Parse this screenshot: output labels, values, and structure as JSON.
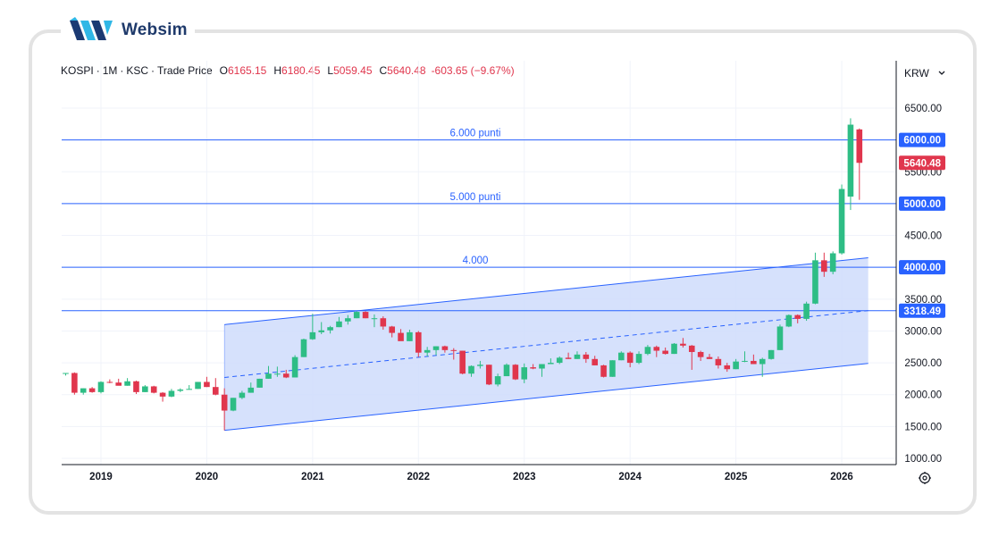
{
  "brand": {
    "name": "Websim"
  },
  "legend": {
    "symbol": "KOSPI",
    "interval": "1M",
    "exchange": "KSC",
    "price_type": "Trade Price",
    "open_key": "O",
    "open": "6165.15",
    "high_key": "H",
    "high": "6180.45",
    "low_key": "L",
    "low": "5059.45",
    "close_key": "C",
    "close": "5640.48",
    "change": "-603.65 (−9.67%)"
  },
  "currency": {
    "label": "KRW"
  },
  "colors": {
    "up": "#26a69a",
    "up_fill": "#2ebd85",
    "down": "#e0364d",
    "line": "#2962ff",
    "channel_fill": "#cfdcfb"
  },
  "chart_data": {
    "type": "candlestick",
    "title": "KOSPI · 1M · KSC · Trade Price",
    "y_ticks": [
      "6500.00",
      "6000.00",
      "5500.00",
      "5000.00",
      "4500.00",
      "4000.00",
      "3500.00",
      "3000.00",
      "2500.00",
      "2000.00",
      "1500.00",
      "1000.00"
    ],
    "ylim": [
      1000,
      6600
    ],
    "x_ticks": [
      "2019",
      "2020",
      "2021",
      "2022",
      "2023",
      "2024",
      "2025",
      "2026"
    ],
    "horizontal_levels": [
      {
        "label": "6.000 punti",
        "value": 6000,
        "badge": "6000.00"
      },
      {
        "label": "5.000 punti",
        "value": 5000,
        "badge": "5000.00"
      },
      {
        "label": "4.000",
        "value": 4000,
        "badge": "4000.00"
      },
      {
        "label": "",
        "value": 3318.49,
        "badge": "3318.49"
      }
    ],
    "last_price_badge": "5640.48",
    "channel": {
      "start": "2020-03",
      "end": "2026-04",
      "upper": [
        3100,
        4150
      ],
      "mid": [
        2270,
        3320
      ],
      "lower": [
        1440,
        2490
      ]
    },
    "candles": [
      [
        "2018-09",
        2330,
        2340,
        2300,
        2340
      ],
      [
        "2018-10",
        2340,
        2350,
        2000,
        2030
      ],
      [
        "2018-11",
        2030,
        2100,
        2000,
        2100
      ],
      [
        "2018-12",
        2100,
        2120,
        2030,
        2040
      ],
      [
        "2019-01",
        2040,
        2210,
        2020,
        2200
      ],
      [
        "2019-02",
        2200,
        2240,
        2180,
        2190
      ],
      [
        "2019-03",
        2190,
        2250,
        2150,
        2140
      ],
      [
        "2019-04",
        2140,
        2260,
        2140,
        2210
      ],
      [
        "2019-05",
        2210,
        2220,
        2010,
        2040
      ],
      [
        "2019-06",
        2040,
        2150,
        2040,
        2130
      ],
      [
        "2019-07",
        2130,
        2140,
        2020,
        2030
      ],
      [
        "2019-08",
        2030,
        2040,
        1890,
        1970
      ],
      [
        "2019-09",
        1970,
        2090,
        1960,
        2060
      ],
      [
        "2019-10",
        2060,
        2100,
        2040,
        2080
      ],
      [
        "2019-11",
        2080,
        2150,
        2080,
        2090
      ],
      [
        "2019-12",
        2090,
        2200,
        2090,
        2200
      ],
      [
        "2020-01",
        2200,
        2280,
        2120,
        2120
      ],
      [
        "2020-02",
        2120,
        2260,
        1990,
        2000
      ],
      [
        "2020-03",
        2000,
        2100,
        1440,
        1750
      ],
      [
        "2020-04",
        1750,
        1950,
        1740,
        1950
      ],
      [
        "2020-05",
        1950,
        2060,
        1930,
        2030
      ],
      [
        "2020-06",
        2030,
        2190,
        2030,
        2110
      ],
      [
        "2020-07",
        2110,
        2250,
        2110,
        2250
      ],
      [
        "2020-08",
        2250,
        2450,
        2250,
        2330
      ],
      [
        "2020-09",
        2330,
        2440,
        2280,
        2330
      ],
      [
        "2020-10",
        2330,
        2390,
        2260,
        2270
      ],
      [
        "2020-11",
        2270,
        2620,
        2270,
        2590
      ],
      [
        "2020-12",
        2590,
        2880,
        2590,
        2870
      ],
      [
        "2021-01",
        2870,
        3270,
        2860,
        2980
      ],
      [
        "2021-02",
        2980,
        3140,
        2950,
        3010
      ],
      [
        "2021-03",
        3010,
        3080,
        2960,
        3060
      ],
      [
        "2021-04",
        3060,
        3220,
        3060,
        3150
      ],
      [
        "2021-05",
        3150,
        3250,
        3100,
        3200
      ],
      [
        "2021-06",
        3200,
        3310,
        3200,
        3300
      ],
      [
        "2021-07",
        3300,
        3310,
        3200,
        3200
      ],
      [
        "2021-08",
        3200,
        3260,
        3060,
        3200
      ],
      [
        "2021-09",
        3200,
        3230,
        3020,
        3070
      ],
      [
        "2021-10",
        3070,
        3080,
        2900,
        2970
      ],
      [
        "2021-11",
        2970,
        3030,
        2850,
        2840
      ],
      [
        "2021-12",
        2840,
        3020,
        2840,
        2980
      ],
      [
        "2022-01",
        2980,
        3000,
        2590,
        2660
      ],
      [
        "2022-02",
        2660,
        2750,
        2600,
        2700
      ],
      [
        "2022-03",
        2700,
        2760,
        2620,
        2760
      ],
      [
        "2022-04",
        2760,
        2770,
        2660,
        2700
      ],
      [
        "2022-05",
        2700,
        2730,
        2550,
        2690
      ],
      [
        "2022-06",
        2690,
        2690,
        2320,
        2330
      ],
      [
        "2022-07",
        2330,
        2460,
        2280,
        2450
      ],
      [
        "2022-08",
        2450,
        2530,
        2410,
        2470
      ],
      [
        "2022-09",
        2470,
        2470,
        2150,
        2160
      ],
      [
        "2022-10",
        2160,
        2330,
        2130,
        2290
      ],
      [
        "2022-11",
        2290,
        2490,
        2290,
        2470
      ],
      [
        "2022-12",
        2470,
        2480,
        2230,
        2240
      ],
      [
        "2023-01",
        2240,
        2490,
        2180,
        2430
      ],
      [
        "2023-02",
        2430,
        2480,
        2400,
        2410
      ],
      [
        "2023-03",
        2410,
        2480,
        2280,
        2480
      ],
      [
        "2023-04",
        2480,
        2570,
        2480,
        2500
      ],
      [
        "2023-05",
        2500,
        2600,
        2480,
        2580
      ],
      [
        "2023-06",
        2580,
        2660,
        2560,
        2560
      ],
      [
        "2023-07",
        2560,
        2680,
        2560,
        2630
      ],
      [
        "2023-08",
        2630,
        2670,
        2500,
        2560
      ],
      [
        "2023-09",
        2560,
        2610,
        2460,
        2460
      ],
      [
        "2023-10",
        2460,
        2470,
        2270,
        2280
      ],
      [
        "2023-11",
        2280,
        2540,
        2280,
        2540
      ],
      [
        "2023-12",
        2540,
        2680,
        2540,
        2660
      ],
      [
        "2024-01",
        2660,
        2680,
        2430,
        2500
      ],
      [
        "2024-02",
        2500,
        2680,
        2480,
        2640
      ],
      [
        "2024-03",
        2640,
        2780,
        2620,
        2750
      ],
      [
        "2024-04",
        2750,
        2770,
        2590,
        2690
      ],
      [
        "2024-05",
        2690,
        2740,
        2630,
        2640
      ],
      [
        "2024-06",
        2640,
        2810,
        2640,
        2800
      ],
      [
        "2024-07",
        2800,
        2890,
        2740,
        2770
      ],
      [
        "2024-08",
        2770,
        2780,
        2390,
        2670
      ],
      [
        "2024-09",
        2670,
        2690,
        2530,
        2590
      ],
      [
        "2024-10",
        2590,
        2640,
        2560,
        2560
      ],
      [
        "2024-11",
        2560,
        2600,
        2410,
        2460
      ],
      [
        "2024-12",
        2460,
        2500,
        2360,
        2400
      ],
      [
        "2025-01",
        2400,
        2560,
        2400,
        2520
      ],
      [
        "2025-02",
        2520,
        2680,
        2510,
        2530
      ],
      [
        "2025-03",
        2530,
        2630,
        2480,
        2480
      ],
      [
        "2025-04",
        2480,
        2580,
        2280,
        2560
      ],
      [
        "2025-05",
        2560,
        2700,
        2550,
        2700
      ],
      [
        "2025-06",
        2700,
        3100,
        2700,
        3070
      ],
      [
        "2025-07",
        3070,
        3260,
        3060,
        3250
      ],
      [
        "2025-08",
        3250,
        3260,
        3120,
        3190
      ],
      [
        "2025-09",
        3190,
        3460,
        3160,
        3430
      ],
      [
        "2025-10",
        3430,
        4230,
        3420,
        4110
      ],
      [
        "2025-11",
        4110,
        4230,
        3850,
        3930
      ],
      [
        "2025-12",
        3930,
        4250,
        3890,
        4220
      ],
      [
        "2026-01",
        4220,
        5300,
        4200,
        5230
      ],
      [
        "2026-02",
        5110,
        6340,
        4900,
        6240
      ],
      [
        "2026-03",
        6165.15,
        6180.45,
        5059.45,
        5640.48
      ]
    ]
  }
}
